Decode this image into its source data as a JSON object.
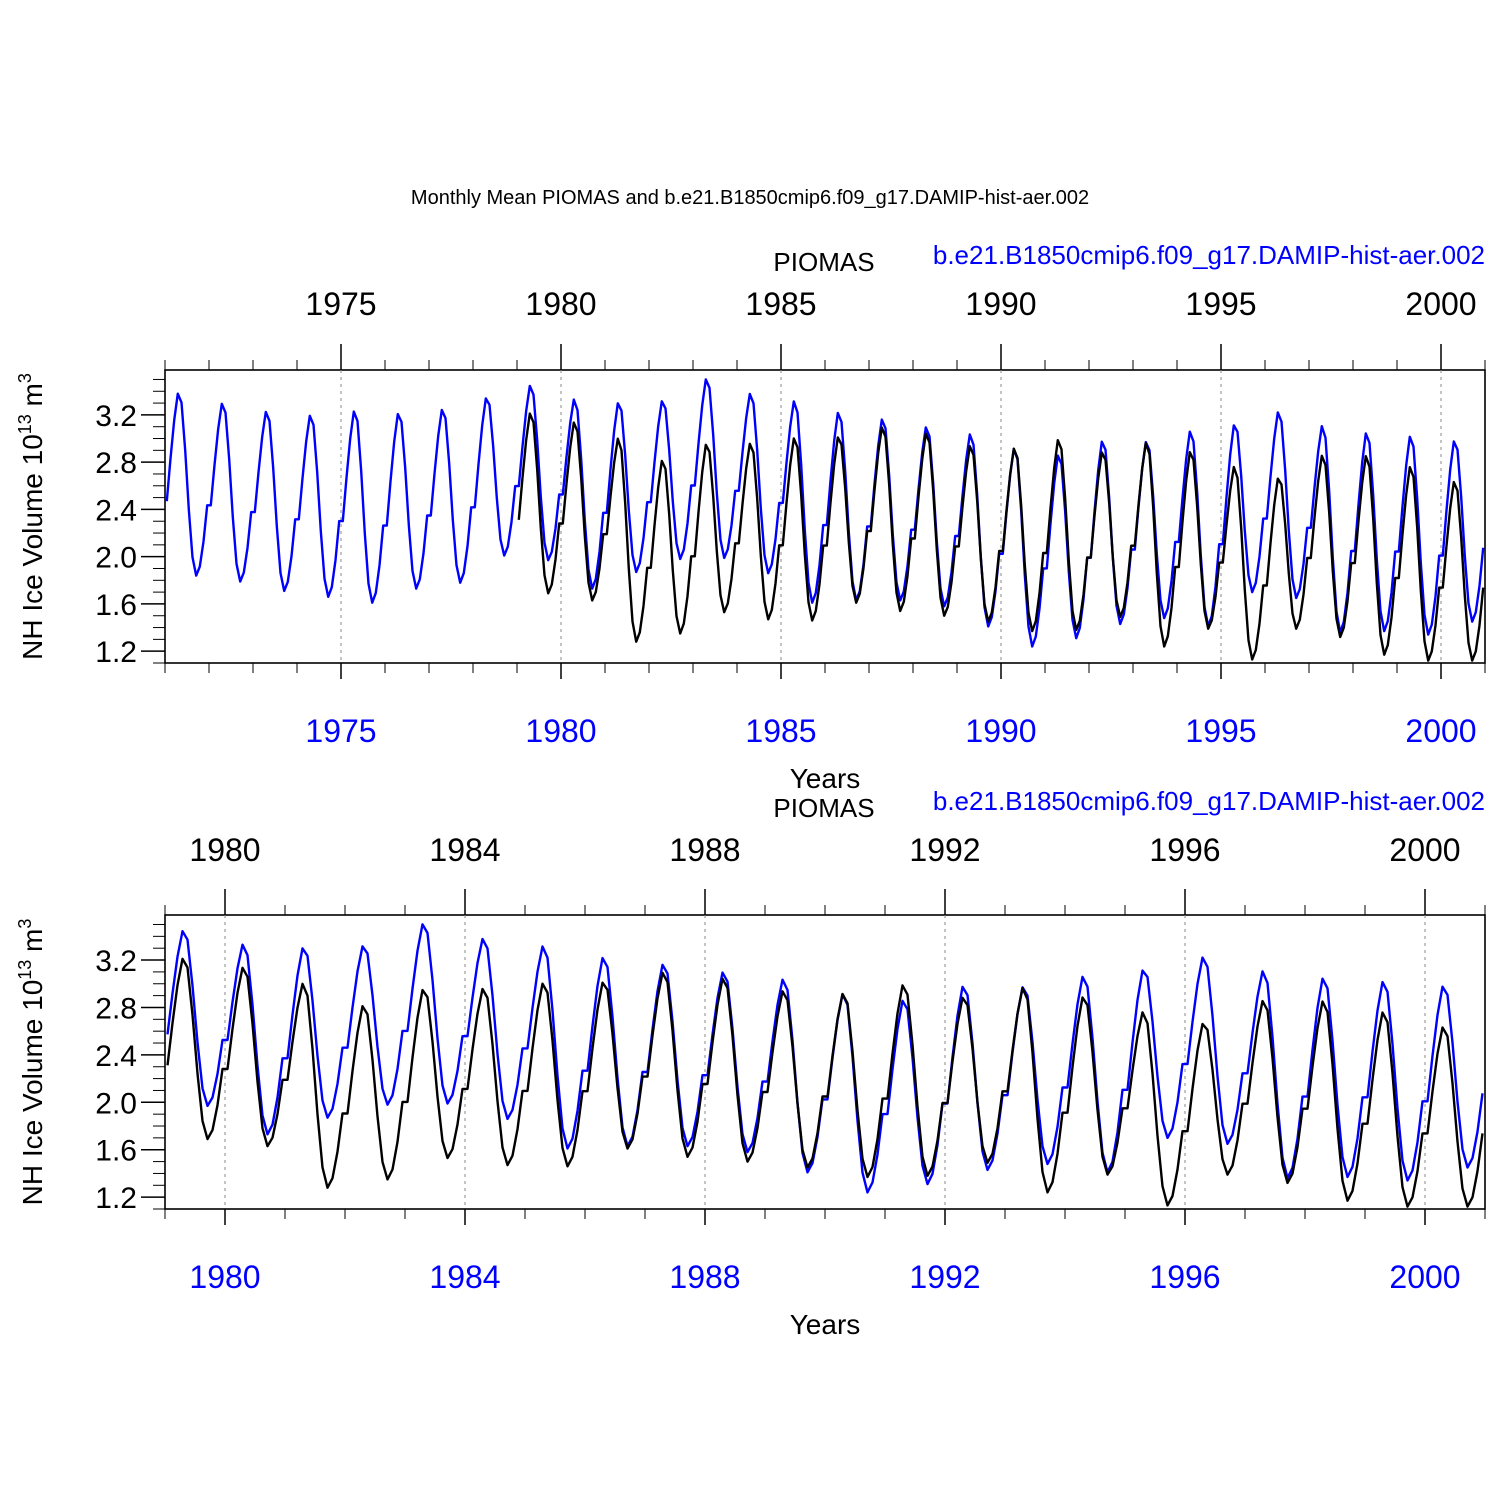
{
  "title": "Monthly Mean PIOMAS and b.e21.B1850cmip6.f09_g17.DAMIP-hist-aer.002",
  "colors": {
    "piomas": "#000000",
    "model": "#0000ff",
    "grid": "#888888",
    "axis": "#000000"
  },
  "chart_data": [
    {
      "type": "line",
      "legend_left": "PIOMAS",
      "legend_right": "b.e21.B1850cmip6.f09_g17.DAMIP-hist-aer.002",
      "xlabel": "Years",
      "ylabel": "NH Ice Volume 10",
      "ylabel_sup": "13",
      "ylabel_unit": " m",
      "ylabel_unit_sup": "3",
      "xlim": [
        1971.0,
        2001.0
      ],
      "ylim": [
        1.1,
        3.58
      ],
      "xticks": [
        "1975",
        "1980",
        "1985",
        "1990",
        "1995",
        "2000"
      ],
      "yticks": [
        "1.2",
        "1.6",
        "2.0",
        "2.4",
        "2.8",
        "3.2"
      ],
      "series": [
        {
          "name": "b.e21.B1850cmip6.f09_g17.DAMIP-hist-aer.002",
          "color": "#0000ff",
          "start": 1971.0,
          "annual_max": [
            3.46,
            3.37,
            3.3,
            3.27,
            3.31,
            3.29,
            3.32,
            3.42,
            3.52,
            3.4,
            3.38,
            3.39,
            3.58,
            3.45,
            3.39,
            3.3,
            3.24,
            3.17,
            3.11,
            2.99,
            2.94,
            3.06,
            3.05,
            3.14,
            3.2,
            3.3,
            3.18,
            3.13,
            3.1,
            3.06
          ],
          "annual_min": [
            1.84,
            1.79,
            1.71,
            1.66,
            1.61,
            1.73,
            1.78,
            2.01,
            1.97,
            1.73,
            1.87,
            1.98,
            1.99,
            1.86,
            1.61,
            1.63,
            1.63,
            1.58,
            1.41,
            1.24,
            1.31,
            1.43,
            1.48,
            1.41,
            1.7,
            1.65,
            1.36,
            1.37,
            1.34,
            1.45
          ]
        },
        {
          "name": "PIOMAS",
          "color": "#000000",
          "start": 1979.0,
          "annual_max": [
            3.29,
            3.21,
            3.07,
            2.89,
            3.03,
            3.03,
            3.08,
            3.09,
            3.17,
            3.12,
            3.01,
            2.99,
            3.07,
            2.96,
            3.04,
            2.97,
            2.83,
            2.74,
            2.93,
            2.93,
            2.84,
            2.71
          ],
          "annual_min": [
            1.69,
            1.63,
            1.28,
            1.35,
            1.53,
            1.47,
            1.46,
            1.61,
            1.54,
            1.5,
            1.45,
            1.37,
            1.38,
            1.49,
            1.24,
            1.39,
            1.13,
            1.39,
            1.32,
            1.17,
            1.12,
            1.12
          ]
        }
      ]
    },
    {
      "type": "line",
      "legend_left": "PIOMAS",
      "legend_right": "b.e21.B1850cmip6.f09_g17.DAMIP-hist-aer.002",
      "xlabel": "Years",
      "ylabel": "NH Ice Volume 10",
      "ylabel_sup": "13",
      "ylabel_unit": " m",
      "ylabel_unit_sup": "3",
      "xlim": [
        1979.0,
        2001.0
      ],
      "ylim": [
        1.1,
        3.58
      ],
      "xticks": [
        "1980",
        "1984",
        "1988",
        "1992",
        "1996",
        "2000"
      ],
      "yticks": [
        "1.2",
        "1.6",
        "2.0",
        "2.4",
        "2.8",
        "3.2"
      ],
      "series": [
        {
          "name": "b.e21.B1850cmip6.f09_g17.DAMIP-hist-aer.002",
          "color": "#0000ff",
          "start": 1979.0,
          "annual_max": [
            3.52,
            3.4,
            3.38,
            3.39,
            3.58,
            3.45,
            3.39,
            3.3,
            3.24,
            3.17,
            3.11,
            2.99,
            2.94,
            3.06,
            3.05,
            3.14,
            3.2,
            3.3,
            3.18,
            3.13,
            3.1,
            3.06
          ],
          "annual_min": [
            1.97,
            1.73,
            1.87,
            1.98,
            1.99,
            1.86,
            1.61,
            1.63,
            1.63,
            1.58,
            1.41,
            1.24,
            1.31,
            1.43,
            1.48,
            1.41,
            1.7,
            1.65,
            1.36,
            1.37,
            1.34,
            1.45
          ]
        },
        {
          "name": "PIOMAS",
          "color": "#000000",
          "start": 1979.0,
          "annual_max": [
            3.29,
            3.21,
            3.07,
            2.89,
            3.03,
            3.03,
            3.08,
            3.09,
            3.17,
            3.12,
            3.01,
            2.99,
            3.07,
            2.96,
            3.04,
            2.97,
            2.83,
            2.74,
            2.93,
            2.93,
            2.84,
            2.71
          ],
          "annual_min": [
            1.69,
            1.63,
            1.28,
            1.35,
            1.53,
            1.47,
            1.46,
            1.61,
            1.54,
            1.5,
            1.45,
            1.37,
            1.38,
            1.49,
            1.24,
            1.39,
            1.13,
            1.39,
            1.32,
            1.17,
            1.12,
            1.12
          ]
        }
      ]
    }
  ]
}
